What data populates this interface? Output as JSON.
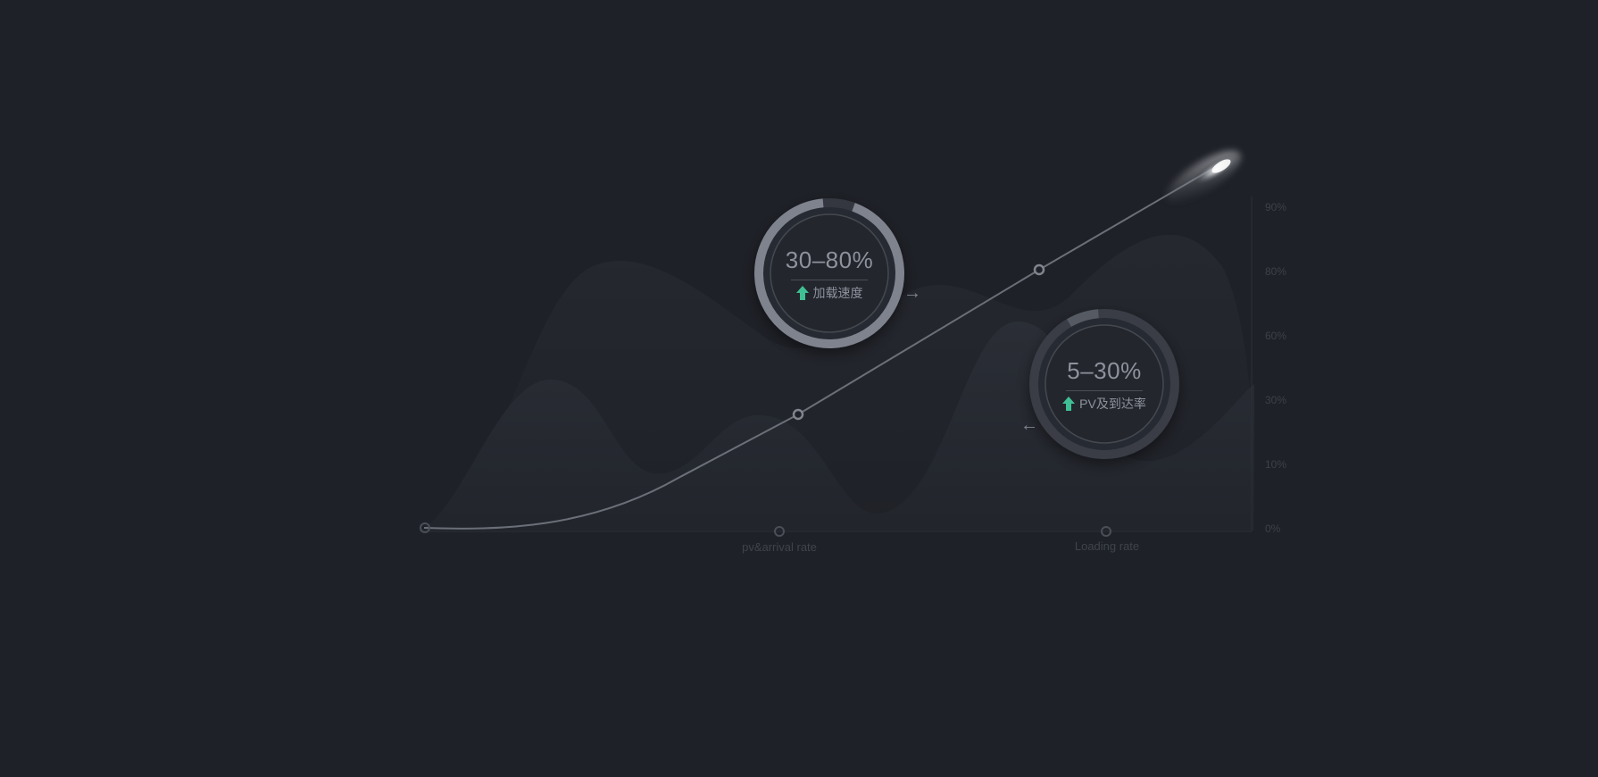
{
  "chart_data": {
    "type": "line",
    "y_ticks": [
      "0%",
      "10%",
      "30%",
      "60%",
      "80%",
      "90%"
    ],
    "x_labels": [
      "pv&arrival rate",
      "Loading rate"
    ],
    "rings": [
      {
        "value_text": "30–80%",
        "caption": "加载速度",
        "arrow": "→",
        "progress": 0.93
      },
      {
        "value_text": "5–30%",
        "caption": "PV及到达率",
        "arrow": "←",
        "progress": 0.07
      }
    ],
    "grid": false,
    "legend": "none"
  },
  "colors": {
    "background": "#1f2128",
    "accent_green": "#3fbf93",
    "ring_light": "#7f838d",
    "ring_dark": "#3a3d46",
    "line": "#6b6f78"
  },
  "icons": [
    "arrow-up-icon",
    "comet-icon",
    "arrow-right-icon",
    "arrow-left-icon"
  ]
}
